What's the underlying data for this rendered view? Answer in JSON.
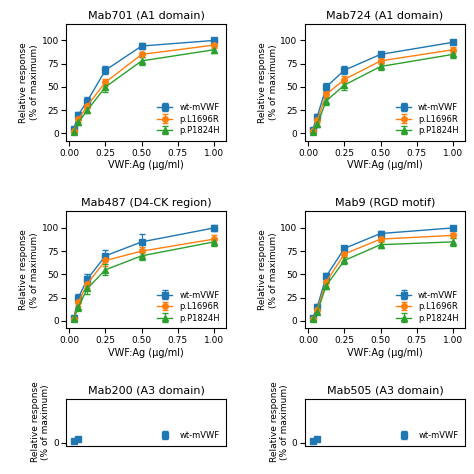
{
  "chart_data": [
    {
      "type": "line",
      "title": "Mab701 (A1 domain)",
      "x": [
        0.031,
        0.063,
        0.125,
        0.25,
        0.5,
        1.0
      ],
      "series": [
        {
          "name": "wt-mVWF",
          "marker": "square",
          "line_style": "solid",
          "values": [
            5,
            20,
            35,
            68,
            94,
            100
          ],
          "yerr": [
            2,
            3,
            4,
            4,
            3,
            2
          ]
        },
        {
          "name": "p.L1696R",
          "marker": "circle",
          "line_style": "solid",
          "values": [
            3,
            15,
            30,
            55,
            85,
            95
          ],
          "yerr": [
            2,
            3,
            3,
            4,
            3,
            3
          ]
        },
        {
          "name": "p.P1824H",
          "marker": "triangle",
          "line_style": "solid",
          "values": [
            2,
            12,
            25,
            50,
            78,
            90
          ],
          "yerr": [
            2,
            3,
            3,
            5,
            4,
            4
          ]
        }
      ],
      "xlabel": "VWF:Ag (μg/ml)",
      "ylabel": "Relative response\n(% of maximum)",
      "xlim": [
        -0.02,
        1.08
      ],
      "ylim": [
        -8,
        118
      ],
      "xticks": [
        {
          "value": 0.0,
          "label": "0.00"
        },
        {
          "value": 0.25,
          "label": "0.25"
        },
        {
          "value": 0.5,
          "label": "0.50"
        },
        {
          "value": 0.75,
          "label": "0.75"
        },
        {
          "value": 1.0,
          "label": "1.00"
        }
      ],
      "yticks": [
        0,
        25,
        50,
        75,
        100
      ],
      "legend": "lower right"
    },
    {
      "type": "line",
      "title": "Mab724 (A1 domain)",
      "x": [
        0.031,
        0.063,
        0.125,
        0.25,
        0.5,
        1.0
      ],
      "series": [
        {
          "name": "wt-mVWF",
          "marker": "square",
          "line_style": "solid",
          "values": [
            4,
            18,
            50,
            68,
            85,
            98
          ],
          "yerr": [
            2,
            3,
            4,
            4,
            3,
            2
          ]
        },
        {
          "name": "p.L1696R",
          "marker": "circle",
          "line_style": "solid",
          "values": [
            3,
            14,
            42,
            58,
            78,
            90
          ],
          "yerr": [
            2,
            3,
            4,
            4,
            3,
            3
          ]
        },
        {
          "name": "p.P1824H",
          "marker": "triangle",
          "line_style": "solid",
          "values": [
            2,
            10,
            35,
            52,
            72,
            85
          ],
          "yerr": [
            2,
            3,
            4,
            5,
            4,
            4
          ]
        }
      ],
      "xlabel": "VWF:Ag (μg/ml)",
      "ylabel": "Relative response\n(% of maximum)",
      "xlim": [
        -0.02,
        1.08
      ],
      "ylim": [
        -8,
        118
      ],
      "xticks": [
        {
          "value": 0.0,
          "label": "0.00"
        },
        {
          "value": 0.25,
          "label": "0.25"
        },
        {
          "value": 0.5,
          "label": "0.50"
        },
        {
          "value": 0.75,
          "label": "0.75"
        },
        {
          "value": 1.0,
          "label": "1.00"
        }
      ],
      "yticks": [
        0,
        25,
        50,
        75,
        100
      ],
      "legend": "lower right"
    },
    {
      "type": "line",
      "title": "Mab487 (D4-CK region)",
      "x": [
        0.031,
        0.063,
        0.125,
        0.25,
        0.5,
        1.0
      ],
      "series": [
        {
          "name": "wt-mVWF",
          "marker": "square",
          "line_style": "solid",
          "values": [
            3,
            25,
            45,
            70,
            85,
            100
          ],
          "yerr": [
            2,
            4,
            5,
            6,
            8,
            3
          ]
        },
        {
          "name": "p.L1696R",
          "marker": "circle",
          "line_style": "solid",
          "values": [
            2,
            20,
            40,
            65,
            75,
            88
          ],
          "yerr": [
            2,
            4,
            5,
            6,
            5,
            4
          ]
        },
        {
          "name": "p.P1824H",
          "marker": "triangle",
          "line_style": "solid",
          "values": [
            2,
            15,
            35,
            55,
            70,
            85
          ],
          "yerr": [
            2,
            4,
            6,
            6,
            5,
            4
          ]
        }
      ],
      "xlabel": "VWF:Ag (μg/ml)",
      "ylabel": "Relative response\n(% of maximum)",
      "xlim": [
        -0.02,
        1.08
      ],
      "ylim": [
        -8,
        118
      ],
      "xticks": [
        {
          "value": 0.0,
          "label": "0.00"
        },
        {
          "value": 0.25,
          "label": "0.25"
        },
        {
          "value": 0.5,
          "label": "0.50"
        },
        {
          "value": 0.75,
          "label": "0.75"
        },
        {
          "value": 1.0,
          "label": "1.00"
        }
      ],
      "yticks": [
        0,
        25,
        50,
        75,
        100
      ],
      "legend": "lower right"
    },
    {
      "type": "line",
      "title": "Mab9 (RGD motif)",
      "x": [
        0.031,
        0.063,
        0.125,
        0.25,
        0.5,
        1.0
      ],
      "series": [
        {
          "name": "wt-mVWF",
          "marker": "square",
          "line_style": "solid",
          "values": [
            3,
            15,
            48,
            78,
            94,
            100
          ],
          "yerr": [
            2,
            3,
            4,
            3,
            3,
            2
          ]
        },
        {
          "name": "p.L1696R",
          "marker": "circle",
          "line_style": "solid",
          "values": [
            2,
            12,
            42,
            72,
            88,
            92
          ],
          "yerr": [
            2,
            3,
            4,
            3,
            3,
            3
          ]
        },
        {
          "name": "p.P1824H",
          "marker": "triangle",
          "line_style": "solid",
          "values": [
            2,
            10,
            38,
            65,
            82,
            85
          ],
          "yerr": [
            2,
            3,
            4,
            4,
            4,
            4
          ]
        }
      ],
      "xlabel": "VWF:Ag (μg/ml)",
      "ylabel": "Relative response\n(% of maximum)",
      "xlim": [
        -0.02,
        1.08
      ],
      "ylim": [
        -8,
        118
      ],
      "xticks": [
        {
          "value": 0.0,
          "label": "0.00"
        },
        {
          "value": 0.25,
          "label": "0.25"
        },
        {
          "value": 0.5,
          "label": "0.50"
        },
        {
          "value": 0.75,
          "label": "0.75"
        },
        {
          "value": 1.0,
          "label": "1.00"
        }
      ],
      "yticks": [
        0,
        25,
        50,
        75,
        100
      ],
      "legend": "lower right"
    },
    {
      "type": "line",
      "title": "Mab200 (A3 domain)",
      "x": [
        0.031,
        0.063
      ],
      "series": [
        {
          "name": "wt-mVWF",
          "marker": "square",
          "line_style": "none",
          "values": [
            3,
            10
          ],
          "yerr": [
            2,
            3
          ]
        }
      ],
      "ylabel": "Relative response\n(% of maximum)",
      "xlim": [
        -0.02,
        1.08
      ],
      "ylim": [
        -8,
        118
      ],
      "yticks": [
        0
      ],
      "tick_labels": "y",
      "legend": "lower right"
    },
    {
      "type": "line",
      "title": "Mab505 (A3 domain)",
      "x": [
        0.031,
        0.063
      ],
      "series": [
        {
          "name": "wt-mVWF",
          "marker": "square",
          "line_style": "none",
          "values": [
            3,
            10
          ],
          "yerr": [
            2,
            3
          ]
        }
      ],
      "ylabel": "Relative response\n(% of maximum)",
      "xlim": [
        -0.02,
        1.08
      ],
      "ylim": [
        -8,
        118
      ],
      "yticks": [
        0
      ],
      "tick_labels": "y",
      "legend": "lower right"
    }
  ]
}
